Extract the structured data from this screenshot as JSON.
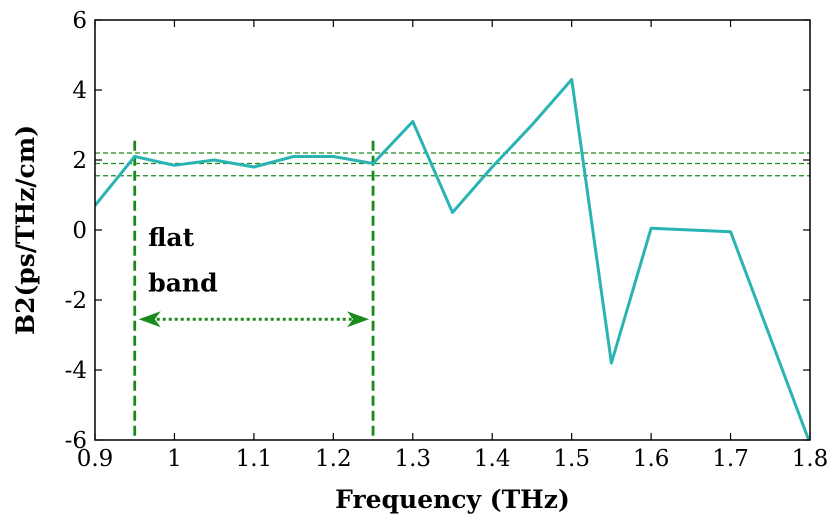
{
  "chart_data": {
    "type": "line",
    "title": "",
    "xlabel": "Frequency (THz)",
    "ylabel": "B2(ps/THz/cm)",
    "xlim": [
      0.9,
      1.8
    ],
    "ylim": [
      -6,
      6
    ],
    "grid": false,
    "x_ticks": [
      "0.9",
      "1",
      "1.1",
      "1.2",
      "1.3",
      "1.4",
      "1.5",
      "1.6",
      "1.7",
      "1.8"
    ],
    "y_ticks": [
      "-6",
      "-4",
      "-2",
      "0",
      "2",
      "4",
      "6"
    ],
    "series": [
      {
        "color": "#2ab3b3",
        "x": [
          0.9,
          0.95,
          1.0,
          1.05,
          1.1,
          1.15,
          1.2,
          1.25,
          1.3,
          1.35,
          1.4,
          1.45,
          1.5,
          1.55,
          1.6,
          1.65,
          1.7,
          1.8
        ],
        "y": [
          0.7,
          2.1,
          1.85,
          2.0,
          1.8,
          2.1,
          2.1,
          1.9,
          3.1,
          0.5,
          1.8,
          3.0,
          4.3,
          -3.8,
          0.05,
          0.0,
          -0.05,
          -6.1
        ]
      }
    ],
    "reference_lines": {
      "horizontal": [
        2.2,
        1.9,
        1.55
      ],
      "vertical": [
        0.95,
        1.25
      ],
      "color": "#1a8a1a"
    },
    "annotations": [
      {
        "text": "flat",
        "x": 0.967,
        "y": -0.45
      },
      {
        "text": "band",
        "x": 0.967,
        "y": -1.75
      }
    ],
    "arrow": {
      "from": 0.95,
      "to": 1.25,
      "y": -2.55,
      "color": "#1a8a1a"
    }
  }
}
